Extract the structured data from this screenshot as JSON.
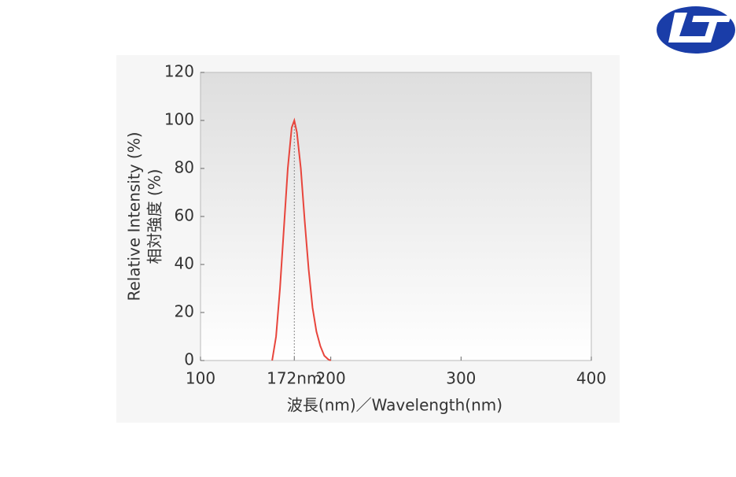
{
  "chart_data": {
    "type": "line",
    "xlabel": "波長(nm)／Wavelength(nm)",
    "ylabel": [
      "Relative Intensity (%)",
      "相対強度 (%)"
    ],
    "x": [
      155,
      158,
      161,
      164,
      167,
      170,
      172,
      174,
      177,
      180,
      183,
      186,
      189,
      192,
      195,
      198,
      200
    ],
    "series": [
      {
        "color": "#e8453c",
        "values": [
          0,
          10,
          30,
          55,
          80,
          97,
          100,
          95,
          80,
          58,
          38,
          22,
          12,
          6,
          2,
          0.5,
          0
        ]
      }
    ],
    "xlim": [
      100,
      400
    ],
    "xticks": [
      100,
      {
        "value": 172,
        "label": "172nm"
      },
      200,
      300,
      400
    ],
    "ylim": [
      0,
      120
    ],
    "yticks": [
      0,
      20,
      40,
      60,
      80,
      100,
      120
    ],
    "peak_line": 172
  }
}
